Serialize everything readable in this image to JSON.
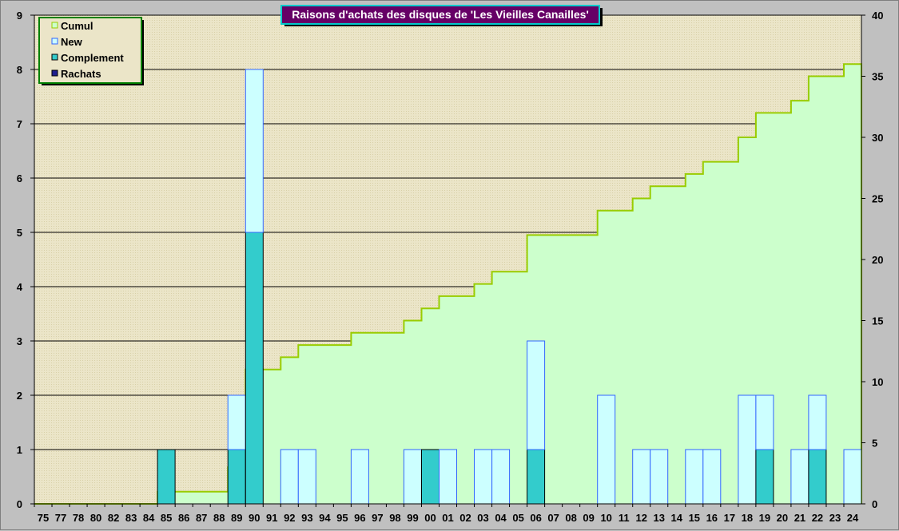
{
  "chart_data": {
    "type": "bar",
    "title": "Raisons d'achats des disques de 'Les Vieilles Canailles'",
    "categories": [
      "75",
      "77",
      "78",
      "80",
      "82",
      "83",
      "84",
      "85",
      "86",
      "87",
      "88",
      "89",
      "90",
      "91",
      "92",
      "93",
      "94",
      "95",
      "96",
      "97",
      "98",
      "99",
      "00",
      "01",
      "02",
      "03",
      "04",
      "05",
      "06",
      "07",
      "08",
      "09",
      "10",
      "11",
      "12",
      "13",
      "14",
      "15",
      "16",
      "17",
      "18",
      "19",
      "20",
      "21",
      "22",
      "23",
      "24"
    ],
    "series": [
      {
        "name": "Rachats",
        "kind": "bar",
        "axis": "left",
        "color": "#1f1f8f",
        "values": [
          0,
          0,
          0,
          0,
          0,
          0,
          0,
          0,
          0,
          0,
          0,
          0,
          0,
          0,
          0,
          0,
          0,
          0,
          0,
          0,
          0,
          0,
          0,
          0,
          0,
          0,
          0,
          0,
          0,
          0,
          0,
          0,
          0,
          0,
          0,
          0,
          0,
          0,
          0,
          0,
          0,
          0,
          0,
          0,
          0,
          0,
          0
        ]
      },
      {
        "name": "Complement",
        "kind": "bar",
        "axis": "left",
        "color": "#33cccc",
        "values": [
          0,
          0,
          0,
          0,
          0,
          0,
          0,
          1,
          0,
          0,
          0,
          1,
          5,
          0,
          0,
          0,
          0,
          0,
          0,
          0,
          0,
          0,
          1,
          0,
          0,
          0,
          0,
          0,
          1,
          0,
          0,
          0,
          0,
          0,
          0,
          0,
          0,
          0,
          0,
          0,
          0,
          1,
          0,
          0,
          1,
          0,
          0
        ]
      },
      {
        "name": "New",
        "kind": "bar",
        "axis": "left",
        "color": "#ccffff",
        "values": [
          0,
          0,
          0,
          0,
          0,
          0,
          0,
          0,
          0,
          0,
          0,
          1,
          3,
          0,
          1,
          1,
          0,
          0,
          1,
          0,
          0,
          1,
          0,
          1,
          0,
          1,
          1,
          0,
          2,
          0,
          0,
          0,
          2,
          0,
          1,
          1,
          0,
          1,
          1,
          0,
          2,
          1,
          0,
          1,
          1,
          0,
          1
        ]
      },
      {
        "name": "Cumul",
        "kind": "area",
        "axis": "right",
        "color": "#99cc00",
        "values": [
          0,
          0,
          0,
          0,
          0,
          0,
          0,
          1,
          1,
          1,
          1,
          3,
          11,
          11,
          12,
          13,
          13,
          13,
          14,
          14,
          14,
          15,
          16,
          17,
          17,
          18,
          19,
          19,
          22,
          22,
          22,
          22,
          24,
          24,
          25,
          26,
          26,
          27,
          28,
          28,
          30,
          32,
          32,
          33,
          35,
          35,
          36
        ]
      }
    ],
    "y_left": {
      "ticks": [
        "0",
        "1",
        "2",
        "3",
        "4",
        "5",
        "6",
        "7",
        "8",
        "9"
      ],
      "range": [
        0,
        9
      ]
    },
    "y_right": {
      "ticks": [
        "0",
        "5",
        "10",
        "15",
        "20",
        "25",
        "30",
        "35",
        "40"
      ],
      "range": [
        0,
        40
      ]
    },
    "grid": true,
    "legend_position": "top-left",
    "legend": [
      "Cumul",
      "New",
      "Complement",
      "Rachats"
    ],
    "colors": {
      "plot_bg": "#ebe5c8",
      "area_fill": "#ccffcc",
      "area_line": "#99cc00",
      "bar_stroke": "#3366ff",
      "title_bg": "#660066",
      "legend_border": "#008000"
    }
  }
}
